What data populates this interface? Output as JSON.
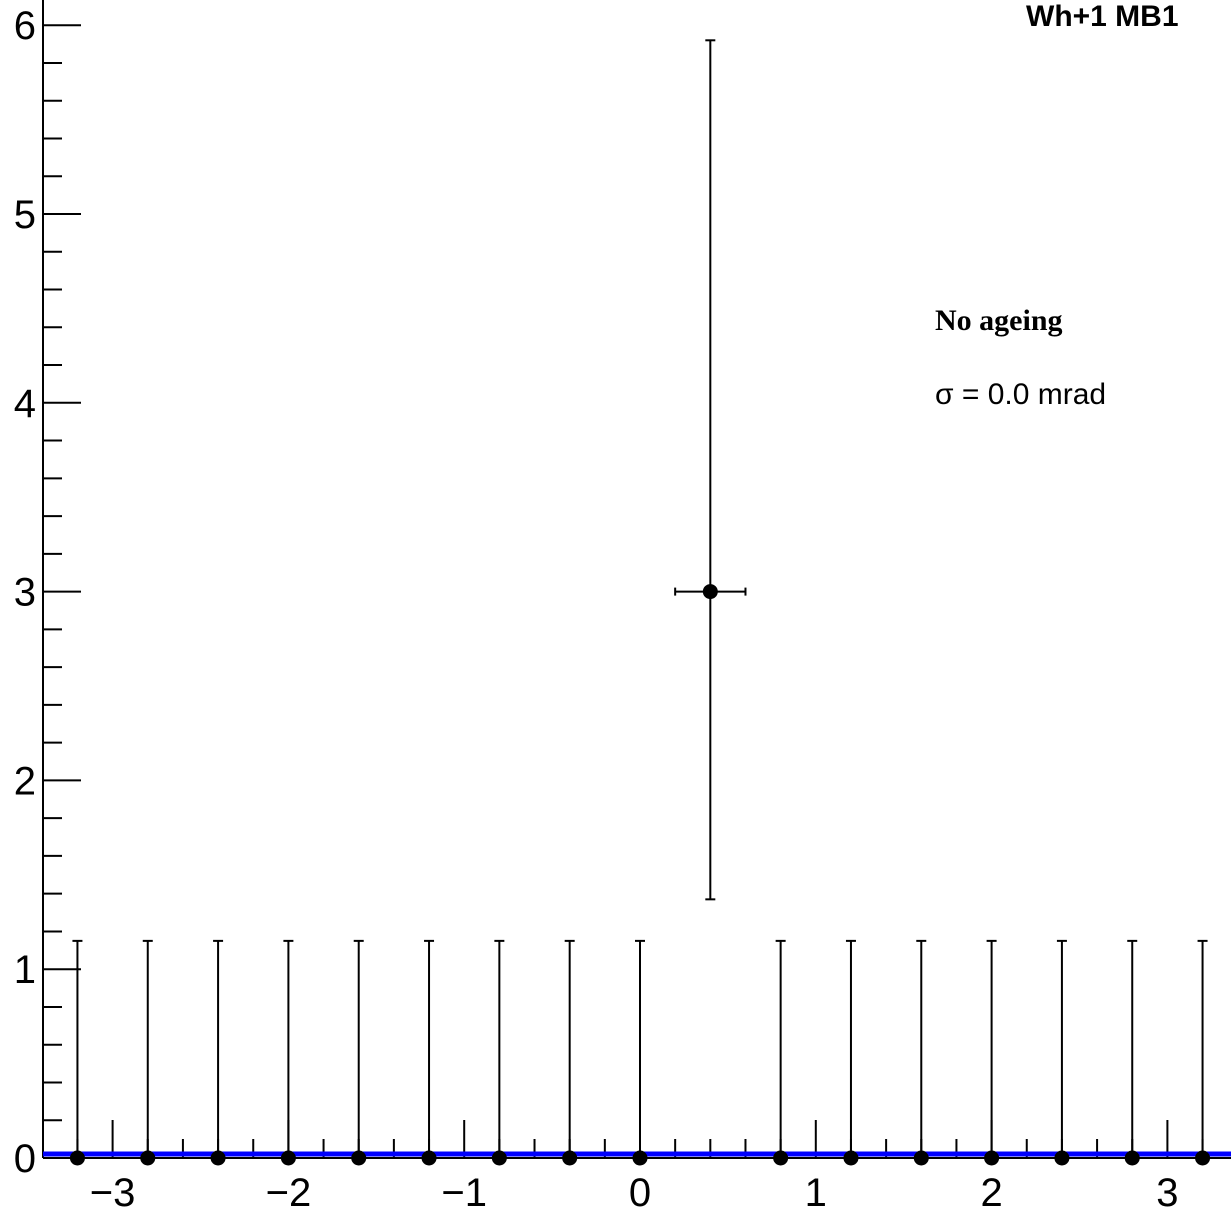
{
  "chart_data": {
    "type": "scatter",
    "title": "Wh+1 MB1",
    "xlabel": "",
    "ylabel": "",
    "xlim": [
      -3.3,
      3.3
    ],
    "ylim": [
      0,
      6.2
    ],
    "x_ticks": [
      -3,
      -2,
      -1,
      0,
      1,
      2,
      3
    ],
    "x_tick_labels": [
      "−3",
      "−2",
      "−1",
      "0",
      "1",
      "2",
      "3"
    ],
    "y_ticks": [
      0,
      1,
      2,
      3,
      4,
      5,
      6
    ],
    "y_tick_labels": [
      "0",
      "1",
      "2",
      "3",
      "4",
      "5",
      "6"
    ],
    "grid": false,
    "fit_line": {
      "y": 0.0,
      "color": "#0000ff"
    },
    "annotations": [
      "No ageing",
      "σ = 0.0 mrad"
    ],
    "series": [
      {
        "marker_color": "#000000",
        "x_half_width": 0.2,
        "points": [
          {
            "x": -3.2,
            "y": 0,
            "err_high": 1.15
          },
          {
            "x": -2.8,
            "y": 0,
            "err_high": 1.15
          },
          {
            "x": -2.4,
            "y": 0,
            "err_high": 1.15
          },
          {
            "x": -2.0,
            "y": 0,
            "err_high": 1.15
          },
          {
            "x": -1.6,
            "y": 0,
            "err_high": 1.15
          },
          {
            "x": -1.2,
            "y": 0,
            "err_high": 1.15
          },
          {
            "x": -0.8,
            "y": 0,
            "err_high": 1.15
          },
          {
            "x": -0.4,
            "y": 0,
            "err_high": 1.15
          },
          {
            "x": 0.0,
            "y": 0,
            "err_high": 1.15
          },
          {
            "x": 0.4,
            "y": 3,
            "err_low": 1.63,
            "err_high": 2.92
          },
          {
            "x": 0.8,
            "y": 0,
            "err_high": 1.15
          },
          {
            "x": 1.2,
            "y": 0,
            "err_high": 1.15
          },
          {
            "x": 1.6,
            "y": 0,
            "err_high": 1.15
          },
          {
            "x": 2.0,
            "y": 0,
            "err_high": 1.15
          },
          {
            "x": 2.4,
            "y": 0,
            "err_high": 1.15
          },
          {
            "x": 2.8,
            "y": 0,
            "err_high": 1.15
          },
          {
            "x": 3.2,
            "y": 0,
            "err_high": 1.15
          }
        ]
      }
    ]
  }
}
